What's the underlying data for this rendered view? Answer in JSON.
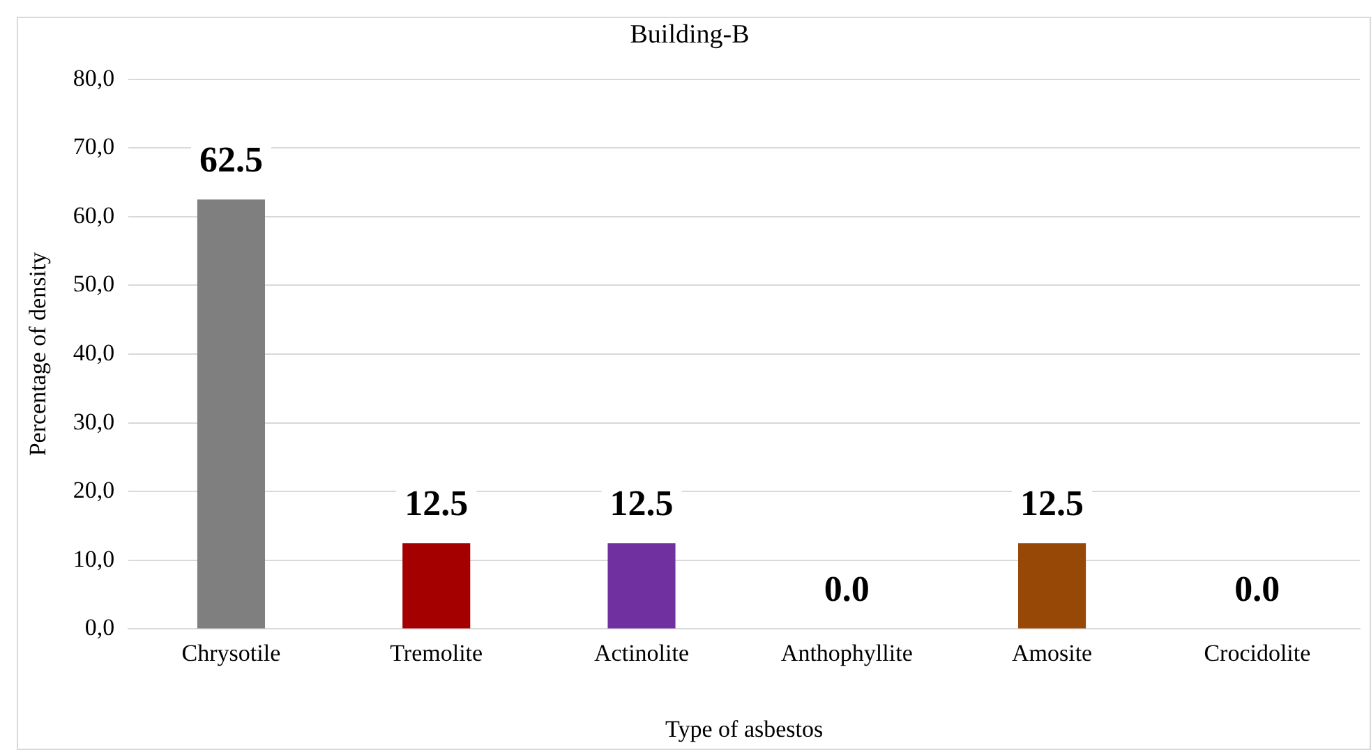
{
  "chart_data": {
    "type": "bar",
    "title": "Building-B",
    "xlabel": "Type of asbestos",
    "ylabel": "Percentage of density",
    "categories": [
      "Chrysotile",
      "Tremolite",
      "Actinolite",
      "Anthophyllite",
      "Amosite",
      "Crocidolite"
    ],
    "values": [
      62.5,
      12.5,
      12.5,
      0,
      12.5,
      0
    ],
    "colors": [
      "#7f7f7f",
      "#a50000",
      "#7030a0",
      "#9a4a0c",
      "#974706",
      "#9a4a0c"
    ],
    "value_labels": [
      "62.5",
      "12.5",
      "12.5",
      "0.0",
      "12.5",
      "0.0"
    ],
    "ylim": [
      0,
      80
    ],
    "yticks": [
      {
        "value": 0,
        "label": "0,0"
      },
      {
        "value": 10,
        "label": "10,0"
      },
      {
        "value": 20,
        "label": "20,0"
      },
      {
        "value": 30,
        "label": "30,0"
      },
      {
        "value": 40,
        "label": "40,0"
      },
      {
        "value": 50,
        "label": "50,0"
      },
      {
        "value": 60,
        "label": "60,0"
      },
      {
        "value": 70,
        "label": "70,0"
      },
      {
        "value": 80,
        "label": "80,0"
      }
    ],
    "grid": "y",
    "legend": false
  }
}
